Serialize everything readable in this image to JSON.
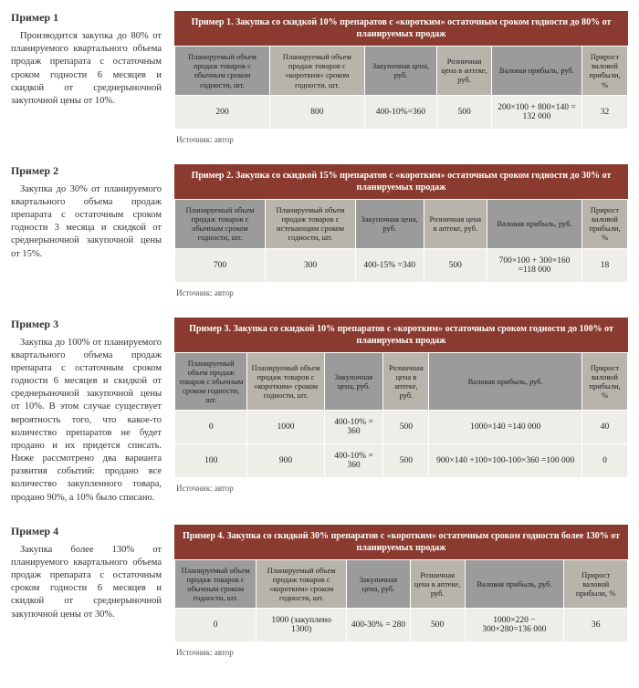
{
  "colors": {
    "caption_bg": "#8a3a2e",
    "header_bg": "#9b9b9b",
    "header_alt_bg": "#b8b3ab",
    "row_bg": "#efede8"
  },
  "source_label": "Источник: автор",
  "examples": [
    {
      "title": "Пример 1",
      "desc": "Производится закупка до 80% от планируемого квартального объема продаж препарата с остаточным сроком годности 6 месяцев и скидкой от среднерыночной закупочной цены от 10%.",
      "caption": "Пример 1. Закупка со скидкой 10% препаратов с «коротким» остаточным сроком годности до 80% от планируемых продаж",
      "columns": [
        "Планируемый объем продаж товаров с обычным сроком годности, шт.",
        "Планируемый объем продаж товаров с «коротким» сроком годности, шт.",
        "Закупочная цена, руб.",
        "Розничная цена в аптеке, руб.",
        "Валовая прибыль, руб.",
        "Прирост валовой прибыли, %"
      ],
      "col_widths": [
        "21%",
        "21%",
        "16%",
        "12%",
        "20%",
        "10%"
      ],
      "rows": [
        [
          "200",
          "800",
          "400-10%=360",
          "500",
          "200×100 + 800×140 = 132 000",
          "32"
        ]
      ]
    },
    {
      "title": "Пример 2",
      "desc": "Закупка до 30% от планируемого квартального объема продаж препарата с остаточным сроком годности 3 месяца и скидкой от среднерыночной закупочной цены от 15%.",
      "caption": "Пример 2. Закупка со скидкой 15% препаратов с «коротким» остаточным сроком годности до 30% от планируемых продаж",
      "columns": [
        "Планируемый объем продаж товаров с обычным сроком годности, шт.",
        "Планируемый объем продаж товаров с истекающим сроком годности, шт.",
        "Закупочная цена, руб.",
        "Розничная цена в аптеке, руб.",
        "Валовая прибыль, руб.",
        "Прирост валовой прибыли, %"
      ],
      "col_widths": [
        "20%",
        "20%",
        "15%",
        "14%",
        "21%",
        "10%"
      ],
      "rows": [
        [
          "700",
          "300",
          "400-15% =340",
          "500",
          "700×100 + 300×160 =118 000",
          "18"
        ]
      ]
    },
    {
      "title": "Пример 3",
      "desc": "Закупка до 100% от планируемого квартального объема продаж препарата с остаточным сроком годности 6 месяцев и скидкой от среднерыночной закупочной цены от 10%. В этом случае существует вероятность того, что какое-то количество препаратов не будет продано и их придется списать. Ниже рассмотрено два варианта развития событий: продано все количество закупленного товара, продано 90%, а 10% было списано.",
      "caption": "Пример 3. Закупка со скидкой 10% препаратов с «коротким» остаточным сроком годности до 100% от планируемых продаж",
      "columns": [
        "Планируемый объем продаж товаров с обычным сроком годности, шт.",
        "Планируемый объем продаж товаров с «коротким» сроком годности, шт.",
        "Закупочная цена, руб.",
        "Розничная цена в аптеке, руб.",
        "Валовая прибыль, руб.",
        "Прирост валовой прибыли, %"
      ],
      "col_widths": [
        "16%",
        "17%",
        "13%",
        "10%",
        "34%",
        "10%"
      ],
      "rows": [
        [
          "0",
          "1000",
          "400-10% = 360",
          "500",
          "1000×140 =140 000",
          "40"
        ],
        [
          "100",
          "900",
          "400-10% = 360",
          "500",
          "900×140 +100×100-100×360 =100 000",
          "0"
        ]
      ]
    },
    {
      "title": "Пример 4",
      "desc": "Закупка более 130% от планируемого квартального объема продаж препарата с остаточным сроком годности 6 месяцев и скидкой от среднерыночной закупочной цены от 30%.",
      "caption": "Пример 4. Закупка со скидкой 30% препаратов с «коротким» остаточным сроком годности более 130% от планируемых продаж",
      "columns": [
        "Планируемый объем продаж товаров с обычным сроком годности, шт.",
        "Планируемый объем продаж товаров с «коротким» сроком годности, шт.",
        "Закупочная цена, руб.",
        "Розничная цена в аптеке, руб.",
        "Валовая прибыль, руб.",
        "Прирост валовой прибыли, %"
      ],
      "col_widths": [
        "18%",
        "20%",
        "14%",
        "12%",
        "22%",
        "14%"
      ],
      "rows": [
        [
          "0",
          "1000 (закуплено 1300)",
          "400-30% = 280",
          "500",
          "1000×220 − 300×280=136 000",
          "36"
        ]
      ]
    }
  ]
}
